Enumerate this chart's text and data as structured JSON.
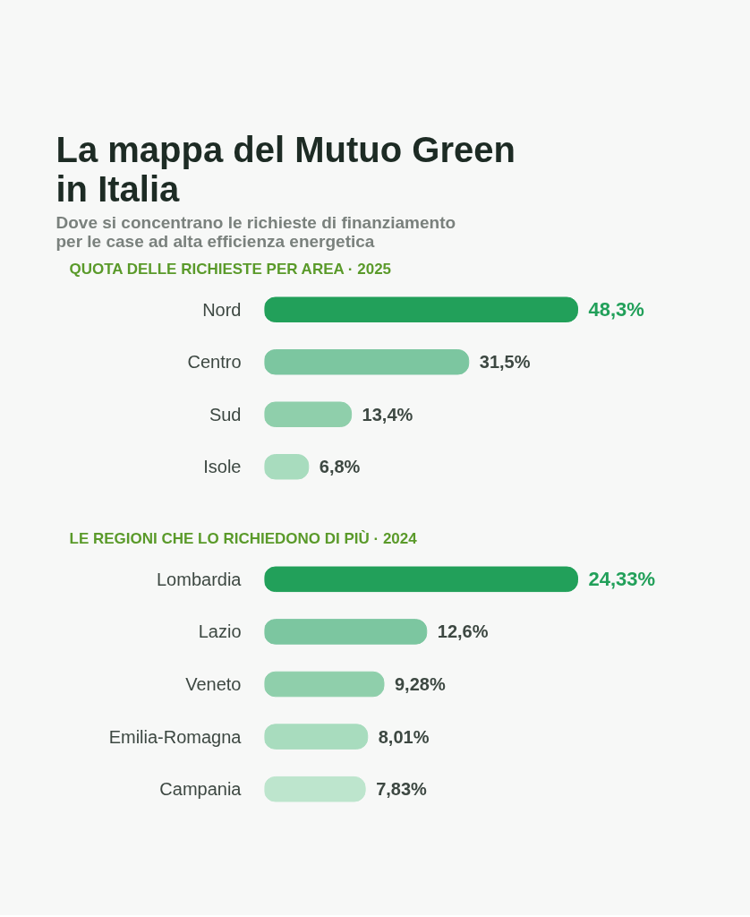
{
  "chart_data": [
    {
      "type": "bar",
      "orientation": "horizontal",
      "title": "La mappa del Mutuo Green\nin Italia",
      "subtitle": "Dove si concentrano le richieste di finanziamento\nper le case ad alta efficienza energetica",
      "annotations": [
        "QUOTA DELLE RICHIESTE PER AREA · 2025"
      ],
      "categories": [
        "Nord",
        "Centro",
        "Sud",
        "Isole"
      ],
      "values": [
        48.3,
        31.5,
        13.4,
        6.8
      ],
      "colors": [
        "#22a05a",
        "#7cc6a0",
        "#8fcfab",
        "#a8dcbe"
      ],
      "value_labels": [
        "48,3%",
        "31,5%",
        "13,4%",
        "6,8%"
      ]
    },
    {
      "type": "bar",
      "orientation": "horizontal",
      "title": "LE REGIONI CHE LO RICHIEDONO DI PIÙ · 2024",
      "categories": [
        "Lombardia",
        "Lazio",
        "Veneto",
        "Emilia-Romagna",
        "Campania"
      ],
      "values": [
        24.33,
        12.6,
        9.28,
        8.01,
        7.83
      ],
      "colors": [
        "#22a05a",
        "#7cc6a0",
        "#8fcfab",
        "#a8dcbe",
        "#bde5cd"
      ],
      "value_labels": [
        "24,33%",
        "12,6%",
        "9,28%",
        "8,01%",
        "7,83%"
      ]
    }
  ]
}
